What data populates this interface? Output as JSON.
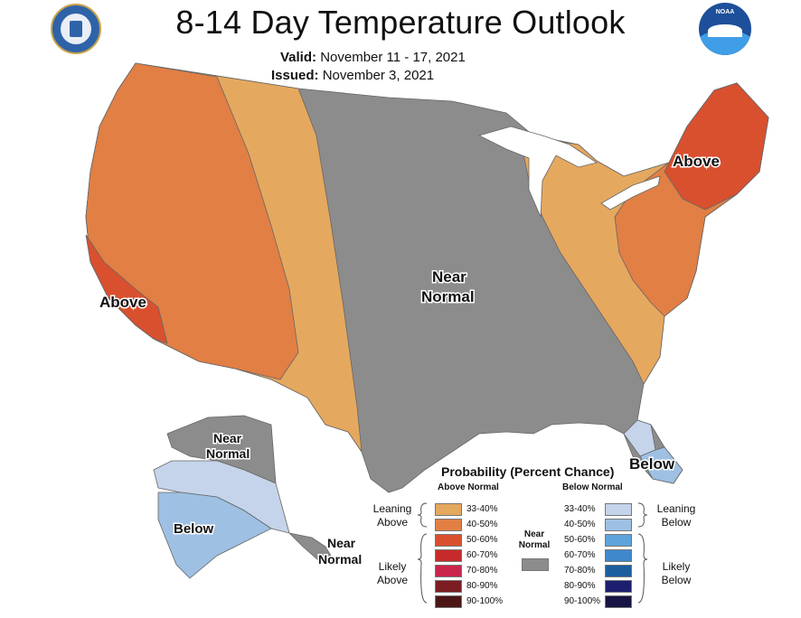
{
  "header": {
    "title": "8-14 Day Temperature Outlook",
    "valid_label": "Valid:",
    "valid_value": "November 11 - 17, 2021",
    "issued_label": "Issued:",
    "issued_value": "November 3, 2021"
  },
  "logos": {
    "left": "department-of-commerce-seal",
    "right": "noaa-logo",
    "right_text": "NOAA"
  },
  "map_labels": {
    "above_west": "Above",
    "above_northeast": "Above",
    "near_normal_central_1": "Near",
    "near_normal_central_2": "Normal",
    "below_florida": "Below",
    "near_normal_alaska_1": "Near",
    "near_normal_alaska_2": "Normal",
    "below_alaska": "Below",
    "near_normal_aleutians_1": "Near",
    "near_normal_aleutians_2": "Normal"
  },
  "colors": {
    "above_33_40": "#e5a85f",
    "above_40_50": "#e17f44",
    "above_50_60": "#d9502f",
    "above_60_70": "#c72a2a",
    "above_70_80": "#c9254a",
    "above_80_90": "#7c1d24",
    "above_90_100": "#4c1616",
    "near_normal": "#8c8c8c",
    "below_33_40": "#c5d4ea",
    "below_40_50": "#9ec0e3",
    "below_50_60": "#5fa3dc",
    "below_60_70": "#3e88cc",
    "below_70_80": "#1c5e9e",
    "below_80_90": "#1c1f6e",
    "below_90_100": "#161444"
  },
  "legend": {
    "title": "Probability (Percent Chance)",
    "above_header": "Above Normal",
    "below_header": "Below Normal",
    "near_normal_label_1": "Near",
    "near_normal_label_2": "Normal",
    "leaning_above_1": "Leaning",
    "leaning_above_2": "Above",
    "likely_above_1": "Likely",
    "likely_above_2": "Above",
    "leaning_below_1": "Leaning",
    "leaning_below_2": "Below",
    "likely_below_1": "Likely",
    "likely_below_2": "Below",
    "above_bins": [
      "33-40%",
      "40-50%",
      "50-60%",
      "60-70%",
      "70-80%",
      "80-90%",
      "90-100%"
    ],
    "below_bins": [
      "33-40%",
      "40-50%",
      "50-60%",
      "60-70%",
      "70-80%",
      "80-90%",
      "90-100%"
    ]
  }
}
